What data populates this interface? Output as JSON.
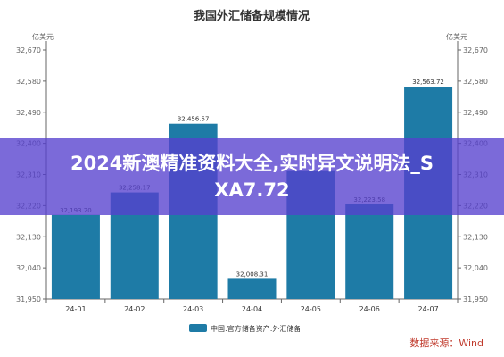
{
  "chart_data": {
    "type": "bar",
    "title": "我国外汇储备规模情况",
    "unit_left": "亿美元",
    "unit_right": "亿美元",
    "categories": [
      "24-01",
      "24-02",
      "24-03",
      "24-04",
      "24-05",
      "24-06",
      "24-07"
    ],
    "series": [
      {
        "name": "中国:官方储备资产:外汇储备",
        "values": [
          32193.2,
          32258.17,
          32456.57,
          32008.31,
          32320.0,
          32223.58,
          32563.72
        ],
        "labels": [
          "32,193.20",
          "32,258.17",
          "32,456.57",
          "32,008.31",
          "",
          "32,223.58",
          "32,563.72"
        ]
      }
    ],
    "ylim": [
      31950,
      32670
    ],
    "yticks": [
      "31,950",
      "32,040",
      "32,130",
      "32,220",
      "32,310",
      "32,400",
      "32,490",
      "32,580",
      "32,670"
    ],
    "ytick_values": [
      31950,
      32040,
      32130,
      32220,
      32310,
      32400,
      32490,
      32580,
      32670
    ],
    "source": "数据来源：Wind",
    "legend_position": "bottom-center",
    "grid": false
  },
  "colors": {
    "bar": "#1e7ba6",
    "axis": "#666666",
    "text": "#333333",
    "source_text": "#c0392b"
  },
  "overlay": {
    "line1": "2024新澳精准资料大全,实时异文说明法_S",
    "line2": "XA7.72"
  }
}
